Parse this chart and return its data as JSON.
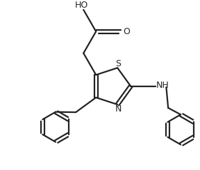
{
  "background_color": "#ffffff",
  "line_color": "#222222",
  "line_width": 1.6,
  "figsize": [
    2.88,
    2.44
  ],
  "dpi": 100,
  "xlim": [
    0,
    10
  ],
  "ylim": [
    0,
    8.5
  ]
}
